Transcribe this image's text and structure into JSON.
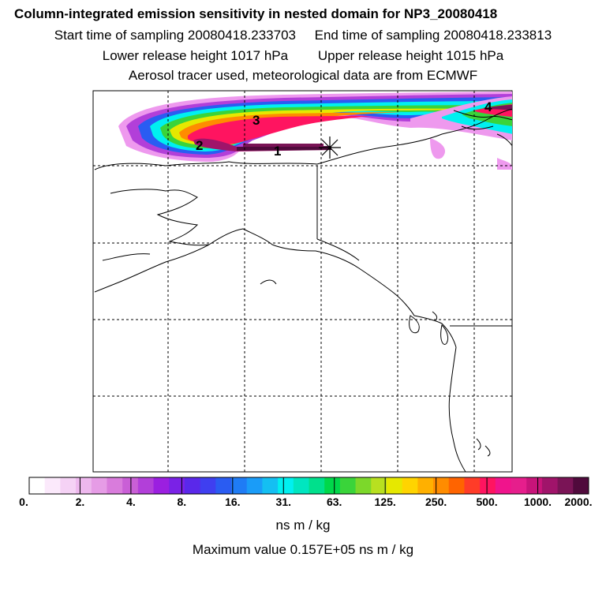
{
  "titles": {
    "line1": "Column-integrated emission sensitivity in nested domain for NP3_20080418",
    "line2": "Start time of sampling 20080418.233703     End time of sampling 20080418.233813",
    "line3": "Lower release height 1017 hPa        Upper release height 1015 hPa",
    "line4": "Aerosol tracer used, meteorological data are from ECMWF"
  },
  "map": {
    "point_labels": [
      "1",
      "2",
      "3",
      "4"
    ],
    "release_marker": "release-star"
  },
  "colorbar": {
    "colors": [
      "#ffffff",
      "#fbe9fb",
      "#f5d2f5",
      "#eeb8ee",
      "#e69ce6",
      "#d97cdc",
      "#c95fd6",
      "#b23fd9",
      "#9b1fe0",
      "#7a22e6",
      "#5a28ea",
      "#3f3ff0",
      "#2a5cf2",
      "#1f7cf5",
      "#1a9cf8",
      "#14bff2",
      "#00f0f0",
      "#00e6c0",
      "#00e08c",
      "#00d84a",
      "#3ad43a",
      "#7cd82a",
      "#b8e020",
      "#e6e800",
      "#ffd400",
      "#ffb000",
      "#ff8c00",
      "#ff6400",
      "#ff3c28",
      "#ff1460",
      "#f0148c",
      "#e61e8c",
      "#c8147a",
      "#a0146a",
      "#7a1456",
      "#500a3c"
    ],
    "tick_labels": [
      "0.",
      "2.",
      "4.",
      "8.",
      "16.",
      "31.",
      "63.",
      "125.",
      "250.",
      "500.",
      "1000.",
      "2000."
    ],
    "units": "ns m / kg",
    "maximum": "Maximum value  0.157E+05 ns m / kg"
  }
}
